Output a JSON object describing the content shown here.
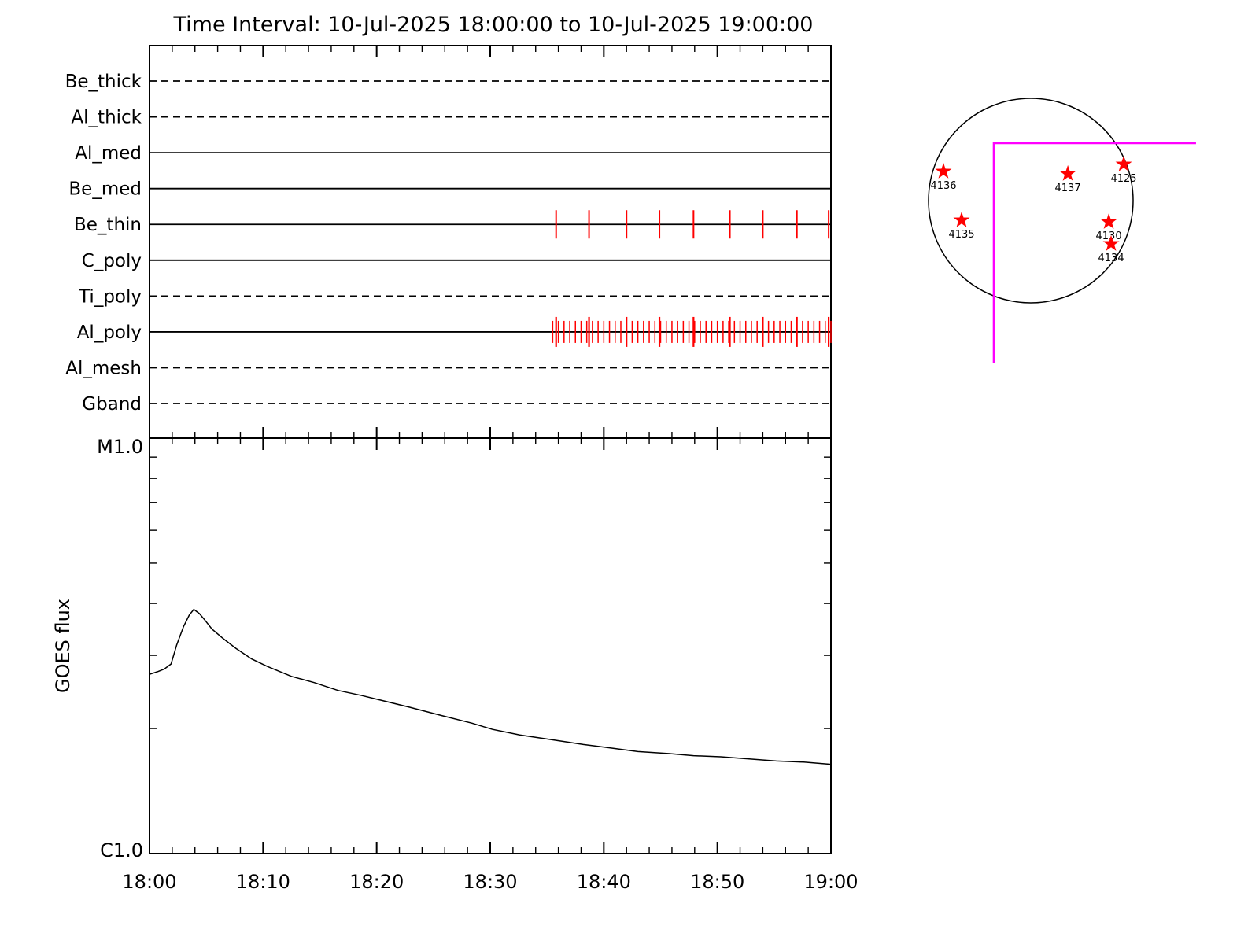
{
  "title": "Time Interval: 10-Jul-2025 18:00:00 to 10-Jul-2025 19:00:00",
  "colors": {
    "axis": "#000000",
    "exposure_tick": "#ff0000",
    "star": "#ff0000",
    "fov_box": "#ff00ff",
    "background": "#ffffff"
  },
  "chart_data": [
    {
      "type": "timeline",
      "name": "xrt_filter_timeline",
      "x_range_minutes": [
        0,
        60
      ],
      "x_major_tick_minutes": 10,
      "x_minor_tick_minutes": 2,
      "channels": [
        {
          "label": "Be_thick",
          "line": "dashed",
          "exposures": []
        },
        {
          "label": "Al_thick",
          "line": "dashed",
          "exposures": []
        },
        {
          "label": "Al_med",
          "line": "solid",
          "exposures": []
        },
        {
          "label": "Be_med",
          "line": "solid",
          "exposures": []
        },
        {
          "label": "Be_thin",
          "line": "solid",
          "exposures": [
            35.8,
            38.7,
            42.0,
            44.9,
            47.9,
            51.1,
            54.0,
            57.0,
            59.8
          ]
        },
        {
          "label": "C_poly",
          "line": "solid",
          "exposures": []
        },
        {
          "label": "Ti_poly",
          "line": "dashed",
          "exposures": []
        },
        {
          "label": "Al_poly",
          "line": "solid",
          "exposures": [
            35.5,
            36,
            36.5,
            37,
            37.5,
            38,
            38.5,
            39,
            39.5,
            40,
            40.5,
            41,
            41.5,
            42,
            42.5,
            43,
            43.5,
            44,
            44.5,
            45,
            45.5,
            46,
            46.5,
            47,
            47.5,
            48,
            48.5,
            49,
            49.5,
            50,
            50.5,
            51,
            51.5,
            52,
            52.5,
            53,
            53.5,
            54,
            54.5,
            55,
            55.5,
            56,
            56.5,
            57,
            57.5,
            58,
            58.5,
            59,
            59.5,
            60
          ],
          "exposures_major": [
            35.8,
            38.7,
            42.0,
            44.9,
            47.9,
            51.1,
            54.0,
            57.0,
            59.8
          ]
        },
        {
          "label": "Al_mesh",
          "line": "dashed",
          "exposures": []
        },
        {
          "label": "Gband",
          "line": "dashed",
          "exposures": []
        }
      ]
    },
    {
      "type": "line",
      "name": "goes_flux",
      "ylabel": "GOES flux",
      "y_axis": {
        "scale": "log",
        "top_label": "M1.0",
        "bottom_label": "C1.0",
        "top_value_c": 10,
        "bottom_value_c": 1
      },
      "x_tick_labels": [
        "18:00",
        "18:10",
        "18:20",
        "18:30",
        "18:40",
        "18:50",
        "19:00"
      ],
      "series": {
        "x_minutes": [
          0,
          0.7,
          1.3,
          1.9,
          2.4,
          3.0,
          3.5,
          3.9,
          4.4,
          4.9,
          5.5,
          6.5,
          7.6,
          9.0,
          10.4,
          12.5,
          14.5,
          16.6,
          18.7,
          20.1,
          22.9,
          25.7,
          28.4,
          30.2,
          32.6,
          35.4,
          38.2,
          40.3,
          43.0,
          45.8,
          47.9,
          50.3,
          52.8,
          55.2,
          57.6,
          60
        ],
        "flux_c": [
          2.7,
          2.74,
          2.78,
          2.86,
          3.18,
          3.52,
          3.75,
          3.87,
          3.78,
          3.64,
          3.47,
          3.29,
          3.12,
          2.94,
          2.82,
          2.67,
          2.58,
          2.47,
          2.4,
          2.35,
          2.25,
          2.15,
          2.06,
          1.99,
          1.93,
          1.88,
          1.83,
          1.8,
          1.76,
          1.74,
          1.72,
          1.71,
          1.69,
          1.67,
          1.66,
          1.64
        ]
      }
    },
    {
      "type": "scatter",
      "name": "solar_disk_active_regions",
      "marker": "star",
      "fov_box": {
        "x1": -0.362,
        "y1": -0.562,
        "x2": 1.615,
        "y2": 1.592
      },
      "active_regions": [
        {
          "label": "4136",
          "x_r": -0.854,
          "y_r": -0.285
        },
        {
          "label": "4137",
          "x_r": 0.362,
          "y_r": -0.262
        },
        {
          "label": "4125",
          "x_r": 0.908,
          "y_r": -0.354
        },
        {
          "label": "4135",
          "x_r": -0.677,
          "y_r": 0.192
        },
        {
          "label": "4130",
          "x_r": 0.762,
          "y_r": 0.208
        },
        {
          "label": "4134",
          "x_r": 0.785,
          "y_r": 0.423
        }
      ]
    }
  ]
}
